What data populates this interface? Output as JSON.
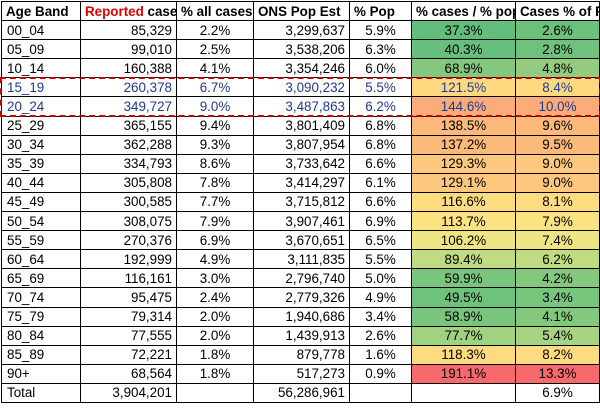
{
  "headers": {
    "band": "Age Band",
    "reported_highlight": "Reported",
    "reported_rest": " cases",
    "pct_all": "% all cases",
    "ons": "ONS Pop Est",
    "pct_pop": "% Pop",
    "ratio": "% cases / % pop",
    "cases_pct_pop": "Cases % of Pop"
  },
  "rows": [
    {
      "band": "00_04",
      "cases": "85,329",
      "pct_all": "2.2%",
      "ons": "3,299,637",
      "pct_pop": "5.9%",
      "ratio": "37.3%",
      "cpop": "2.6%",
      "ratio_color": "#63be7b",
      "cpop_color": "#6bc17c"
    },
    {
      "band": "05_09",
      "cases": "99,010",
      "pct_all": "2.5%",
      "ons": "3,538,206",
      "pct_pop": "6.3%",
      "ratio": "40.3%",
      "cpop": "2.8%",
      "ratio_color": "#66bf7c",
      "cpop_color": "#6ec27c"
    },
    {
      "band": "10_14",
      "cases": "160,388",
      "pct_all": "4.1%",
      "ons": "3,354,246",
      "pct_pop": "6.0%",
      "ratio": "68.9%",
      "cpop": "4.8%",
      "ratio_color": "#84c87d",
      "cpop_color": "#93cc7e"
    },
    {
      "band": "15_19",
      "cases": "260,378",
      "pct_all": "6.7%",
      "ons": "3,090,232",
      "pct_pop": "5.5%",
      "ratio": "121.5%",
      "cpop": "8.4%",
      "ratio_color": "#fed980",
      "cpop_color": "#fed980"
    },
    {
      "band": "20_24",
      "cases": "349,727",
      "pct_all": "9.0%",
      "ons": "3,487,863",
      "pct_pop": "6.2%",
      "ratio": "144.6%",
      "cpop": "10.0%",
      "ratio_color": "#fbac78",
      "cpop_color": "#fbac78"
    },
    {
      "band": "25_29",
      "cases": "365,155",
      "pct_all": "9.4%",
      "ons": "3,801,409",
      "pct_pop": "6.8%",
      "ratio": "138.5%",
      "cpop": "9.6%",
      "ratio_color": "#fcb97a",
      "cpop_color": "#fcb97a"
    },
    {
      "band": "30_34",
      "cases": "362,288",
      "pct_all": "9.3%",
      "ons": "3,807,954",
      "pct_pop": "6.8%",
      "ratio": "137.2%",
      "cpop": "9.5%",
      "ratio_color": "#fcba7a",
      "cpop_color": "#fcba7a"
    },
    {
      "band": "35_39",
      "cases": "334,793",
      "pct_all": "8.6%",
      "ons": "3,733,642",
      "pct_pop": "6.6%",
      "ratio": "129.3%",
      "cpop": "9.0%",
      "ratio_color": "#fdc87d",
      "cpop_color": "#fdc87d"
    },
    {
      "band": "40_44",
      "cases": "305,808",
      "pct_all": "7.8%",
      "ons": "3,414,297",
      "pct_pop": "6.1%",
      "ratio": "129.1%",
      "cpop": "9.0%",
      "ratio_color": "#fdc87d",
      "cpop_color": "#fdc87d"
    },
    {
      "band": "45_49",
      "cases": "300,585",
      "pct_all": "7.7%",
      "ons": "3,715,812",
      "pct_pop": "6.6%",
      "ratio": "116.6%",
      "cpop": "8.1%",
      "ratio_color": "#fedd81",
      "cpop_color": "#fedd81"
    },
    {
      "band": "50_54",
      "cases": "308,075",
      "pct_all": "7.9%",
      "ons": "3,907,461",
      "pct_pop": "6.9%",
      "ratio": "113.7%",
      "cpop": "7.9%",
      "ratio_color": "#fde282",
      "cpop_color": "#fde282"
    },
    {
      "band": "55_59",
      "cases": "270,376",
      "pct_all": "6.9%",
      "ons": "3,670,651",
      "pct_pop": "6.5%",
      "ratio": "106.2%",
      "cpop": "7.4%",
      "ratio_color": "#eee683",
      "cpop_color": "#eee683"
    },
    {
      "band": "60_64",
      "cases": "192,999",
      "pct_all": "4.9%",
      "ons": "3,111,835",
      "pct_pop": "5.5%",
      "ratio": "89.4%",
      "cpop": "6.2%",
      "ratio_color": "#c0db81",
      "cpop_color": "#c0db81"
    },
    {
      "band": "65_69",
      "cases": "116,161",
      "pct_all": "3.0%",
      "ons": "2,796,740",
      "pct_pop": "5.0%",
      "ratio": "59.9%",
      "cpop": "4.2%",
      "ratio_color": "#7ac57d",
      "cpop_color": "#84c87d"
    },
    {
      "band": "70_74",
      "cases": "95,475",
      "pct_all": "2.4%",
      "ons": "2,779,326",
      "pct_pop": "4.9%",
      "ratio": "49.5%",
      "cpop": "3.4%",
      "ratio_color": "#6fc27c",
      "cpop_color": "#78c57d"
    },
    {
      "band": "75_79",
      "cases": "79,314",
      "pct_all": "2.0%",
      "ons": "1,940,686",
      "pct_pop": "3.4%",
      "ratio": "58.9%",
      "cpop": "4.1%",
      "ratio_color": "#79c57d",
      "cpop_color": "#82c87d"
    },
    {
      "band": "80_84",
      "cases": "77,555",
      "pct_all": "2.0%",
      "ons": "1,439,913",
      "pct_pop": "2.6%",
      "ratio": "77.7%",
      "cpop": "5.4%",
      "ratio_color": "#a0d27f",
      "cpop_color": "#a7d480"
    },
    {
      "band": "85_89",
      "cases": "72,221",
      "pct_all": "1.8%",
      "ons": "879,778",
      "pct_pop": "1.6%",
      "ratio": "118.3%",
      "cpop": "8.2%",
      "ratio_color": "#fedb80",
      "cpop_color": "#fedb80"
    },
    {
      "band": "90+",
      "cases": "68,564",
      "pct_all": "1.8%",
      "ons": "517,273",
      "pct_pop": "0.9%",
      "ratio": "191.1%",
      "cpop": "13.3%",
      "ratio_color": "#f8696b",
      "cpop_color": "#f8696b"
    }
  ],
  "total": {
    "band": "Total",
    "cases": "3,904,201",
    "pct_all": "",
    "ons": "56,286,961",
    "pct_pop": "",
    "ratio": "",
    "cpop": "6.9%"
  },
  "highlighted_rows": [
    "15_19",
    "20_24"
  ],
  "colors": {
    "highlight_border": "#c00000",
    "highlight_text": "#1f3a93",
    "reported_text": "#e00000"
  },
  "chart_data": {
    "type": "table",
    "columns": [
      "Age Band",
      "Reported cases",
      "% all cases",
      "ONS Pop Est",
      "% Pop",
      "% cases / % pop",
      "Cases % of Pop"
    ],
    "rows": [
      [
        "00_04",
        85329,
        "2.2%",
        3299637,
        "5.9%",
        "37.3%",
        "2.6%"
      ],
      [
        "05_09",
        99010,
        "2.5%",
        3538206,
        "6.3%",
        "40.3%",
        "2.8%"
      ],
      [
        "10_14",
        160388,
        "4.1%",
        3354246,
        "6.0%",
        "68.9%",
        "4.8%"
      ],
      [
        "15_19",
        260378,
        "6.7%",
        3090232,
        "5.5%",
        "121.5%",
        "8.4%"
      ],
      [
        "20_24",
        349727,
        "9.0%",
        3487863,
        "6.2%",
        "144.6%",
        "10.0%"
      ],
      [
        "25_29",
        365155,
        "9.4%",
        3801409,
        "6.8%",
        "138.5%",
        "9.6%"
      ],
      [
        "30_34",
        362288,
        "9.3%",
        3807954,
        "6.8%",
        "137.2%",
        "9.5%"
      ],
      [
        "35_39",
        334793,
        "8.6%",
        3733642,
        "6.6%",
        "129.3%",
        "9.0%"
      ],
      [
        "40_44",
        305808,
        "7.8%",
        3414297,
        "6.1%",
        "129.1%",
        "9.0%"
      ],
      [
        "45_49",
        300585,
        "7.7%",
        3715812,
        "6.6%",
        "116.6%",
        "8.1%"
      ],
      [
        "50_54",
        308075,
        "7.9%",
        3907461,
        "6.9%",
        "113.7%",
        "7.9%"
      ],
      [
        "55_59",
        270376,
        "6.9%",
        3670651,
        "6.5%",
        "106.2%",
        "7.4%"
      ],
      [
        "60_64",
        192999,
        "4.9%",
        3111835,
        "5.5%",
        "89.4%",
        "6.2%"
      ],
      [
        "65_69",
        116161,
        "3.0%",
        2796740,
        "5.0%",
        "59.9%",
        "4.2%"
      ],
      [
        "70_74",
        95475,
        "2.4%",
        2779326,
        "4.9%",
        "49.5%",
        "3.4%"
      ],
      [
        "75_79",
        79314,
        "2.0%",
        1940686,
        "3.4%",
        "58.9%",
        "4.1%"
      ],
      [
        "80_84",
        77555,
        "2.0%",
        1439913,
        "2.6%",
        "77.7%",
        "5.4%"
      ],
      [
        "85_89",
        72221,
        "1.8%",
        879778,
        "1.6%",
        "118.3%",
        "8.2%"
      ],
      [
        "90+",
        68564,
        "1.8%",
        517273,
        "0.9%",
        "191.1%",
        "13.3%"
      ],
      [
        "Total",
        3904201,
        "",
        56286961,
        "",
        "",
        "6.9%"
      ]
    ]
  }
}
